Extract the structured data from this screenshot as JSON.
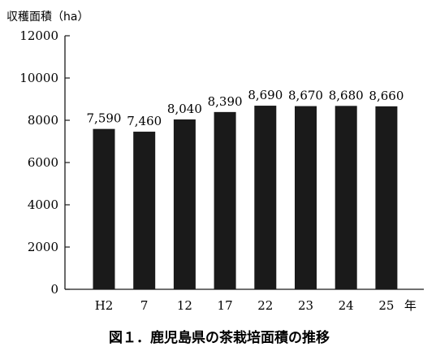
{
  "chart_data": {
    "type": "bar",
    "ylabel": "収穫面積（ha）",
    "xunit": "年",
    "categories": [
      "H2",
      "7",
      "12",
      "17",
      "22",
      "23",
      "24",
      "25"
    ],
    "values": [
      7590,
      7460,
      8040,
      8390,
      8690,
      8670,
      8680,
      8660
    ],
    "value_labels": [
      "7,590",
      "7,460",
      "8,040",
      "8,390",
      "8,690",
      "8,670",
      "8,680",
      "8,660"
    ],
    "ylim": [
      0,
      12000
    ],
    "yticks": [
      0,
      2000,
      4000,
      6000,
      8000,
      10000,
      12000
    ],
    "grid": false,
    "bar_color": "#1a1a1a"
  },
  "caption": "図１．鹿児島県の茶栽培面積の推移"
}
